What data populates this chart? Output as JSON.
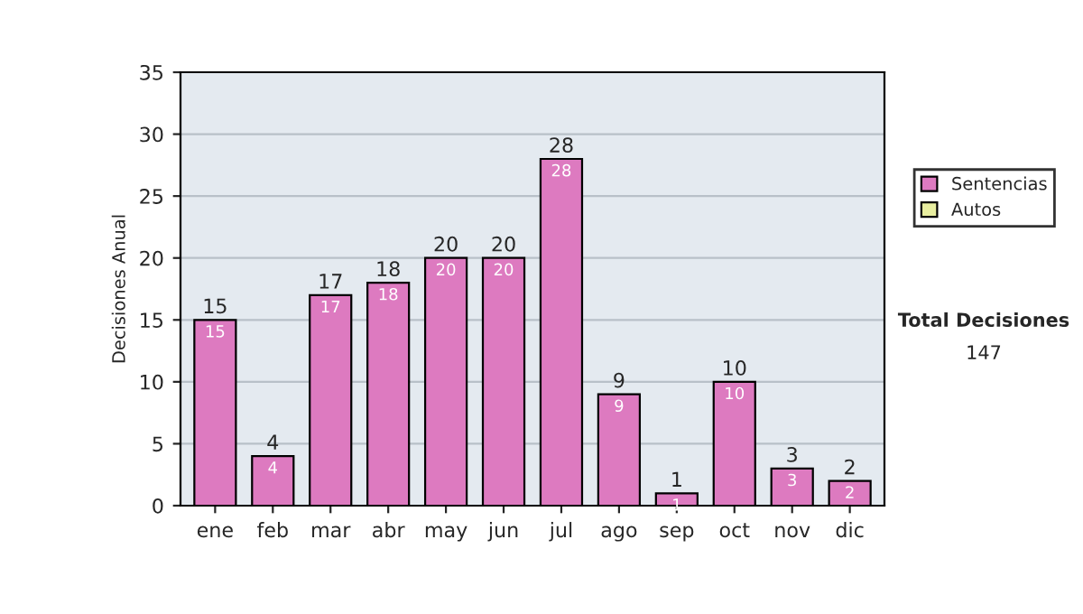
{
  "chart_data": {
    "type": "bar",
    "ylabel": "Decisiones Anual",
    "categories": [
      "ene",
      "feb",
      "mar",
      "abr",
      "may",
      "jun",
      "jul",
      "ago",
      "sep",
      "oct",
      "nov",
      "dic"
    ],
    "series": [
      {
        "name": "Sentencias",
        "color": "#dd7ac0",
        "values": [
          15,
          4,
          17,
          18,
          20,
          20,
          28,
          9,
          1,
          10,
          3,
          2
        ],
        "value_labels": [
          "15",
          "4",
          "17",
          "18",
          "20",
          "20",
          "28",
          "9",
          "1",
          "10",
          "3",
          "2"
        ]
      },
      {
        "name": "Autos",
        "color": "#e8eea0",
        "values": [
          null,
          null,
          null,
          null,
          null,
          null,
          null,
          null,
          null,
          null,
          null,
          null
        ]
      }
    ],
    "stacked": true,
    "totals": [
      "15",
      "4",
      "17",
      "18",
      "20",
      "20",
      "28",
      "9",
      "1",
      "10",
      "3",
      "2"
    ],
    "ylim": [
      0,
      35
    ],
    "yticks": [
      0,
      5,
      10,
      15,
      20,
      25,
      30,
      35
    ],
    "grid": "y",
    "legend": "right",
    "annotations": [
      "Total Decisiones",
      "147"
    ]
  }
}
